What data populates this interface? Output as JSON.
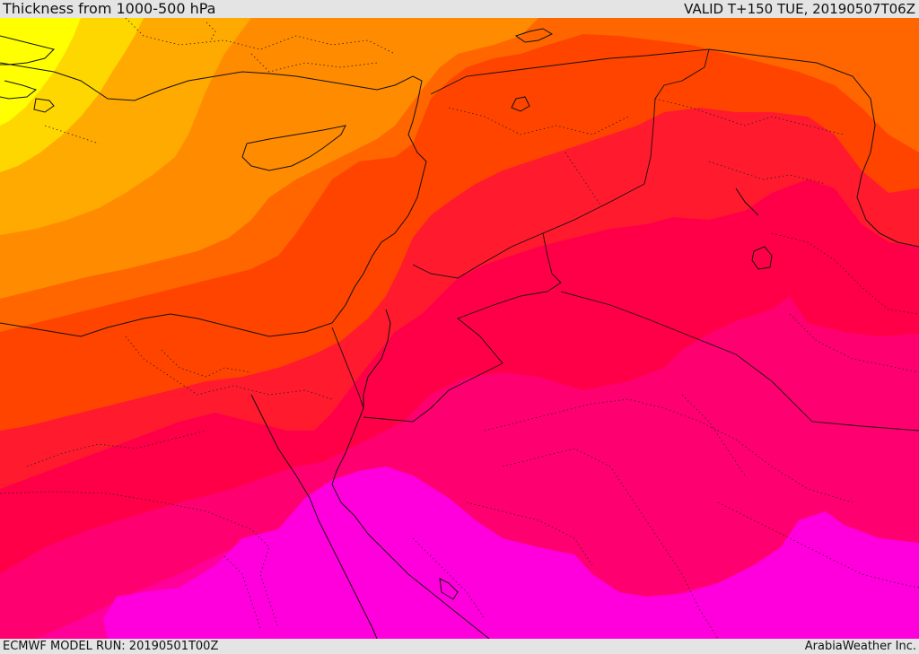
{
  "header": {
    "title": "Thickness from 1000-500 hPa",
    "valid_time": "VALID T+150 TUE, 20190507T06Z"
  },
  "footer": {
    "model_run": "ECMWF MODEL RUN: 20190501T00Z",
    "credit": "ArabiaWeather Inc."
  },
  "palette": {
    "yellow": "#ffff00",
    "gold": "#ffd700",
    "light_orange": "#ffaa00",
    "orange": "#ff8c00",
    "dark_orange": "#ff6600",
    "red_orange": "#ff4400",
    "red": "#ff1a2e",
    "crimson": "#ff0048",
    "pink_red": "#ff0070",
    "deep_pink": "#ff0099",
    "magenta": "#ff00dd"
  }
}
